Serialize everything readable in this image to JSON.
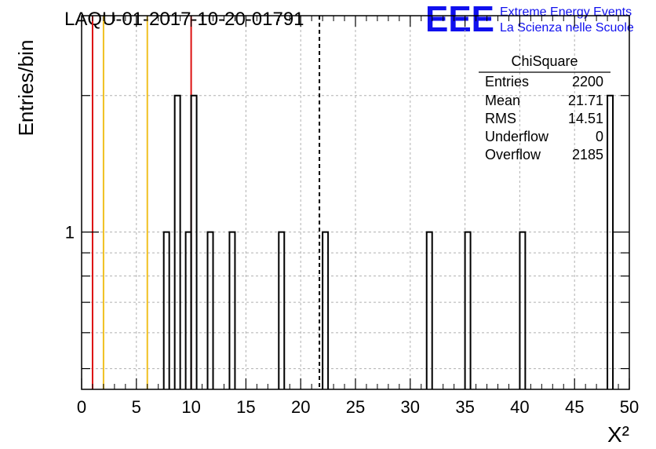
{
  "header": {
    "run_title": "LAQU-01-2017-10-20-01791",
    "logo_text": "EEE",
    "logo_line1": "Extreme Energy Events",
    "logo_line2": "La Scienza nelle Scuole"
  },
  "stats_box": {
    "title": "ChiSquare",
    "rows": [
      {
        "label": "Entries",
        "value": "2200"
      },
      {
        "label": "Mean",
        "value": "21.71"
      },
      {
        "label": "RMS",
        "value": "14.51"
      },
      {
        "label": "Underflow",
        "value": "0"
      },
      {
        "label": "Overflow",
        "value": "2185"
      }
    ]
  },
  "colors": {
    "histogram": "#000000",
    "red_line": "#dd1111",
    "orange_line": "#f0c020",
    "grid": "#b0b0b0",
    "logo": "#1010ee"
  },
  "chart_data": {
    "type": "bar",
    "title": "LAQU-01-2017-10-20-01791",
    "xlabel": "X²",
    "ylabel": "Entries/bin",
    "xlim": [
      0,
      50
    ],
    "ylim": [
      0.45,
      3
    ],
    "y_scale": "log",
    "bin_width": 0.5,
    "grid": true,
    "x_ticks": [
      "0",
      "5",
      "10",
      "15",
      "20",
      "25",
      "30",
      "35",
      "40",
      "45",
      "50"
    ],
    "y_tick_labels": [
      "1"
    ],
    "bins": [
      {
        "x": 7.5,
        "value": 1
      },
      {
        "x": 8.5,
        "value": 2
      },
      {
        "x": 9.5,
        "value": 1
      },
      {
        "x": 10.0,
        "value": 2
      },
      {
        "x": 11.5,
        "value": 1
      },
      {
        "x": 13.5,
        "value": 1
      },
      {
        "x": 18.0,
        "value": 1
      },
      {
        "x": 22.0,
        "value": 1
      },
      {
        "x": 31.5,
        "value": 1
      },
      {
        "x": 35.0,
        "value": 1
      },
      {
        "x": 40.0,
        "value": 1
      },
      {
        "x": 48.0,
        "value": 2
      }
    ],
    "vertical_lines": [
      {
        "x": 1,
        "color": "red"
      },
      {
        "x": 2,
        "color": "orange"
      },
      {
        "x": 6,
        "color": "orange"
      },
      {
        "x": 10,
        "color": "red"
      },
      {
        "x": 21.71,
        "color": "black",
        "style": "dashed"
      }
    ]
  }
}
